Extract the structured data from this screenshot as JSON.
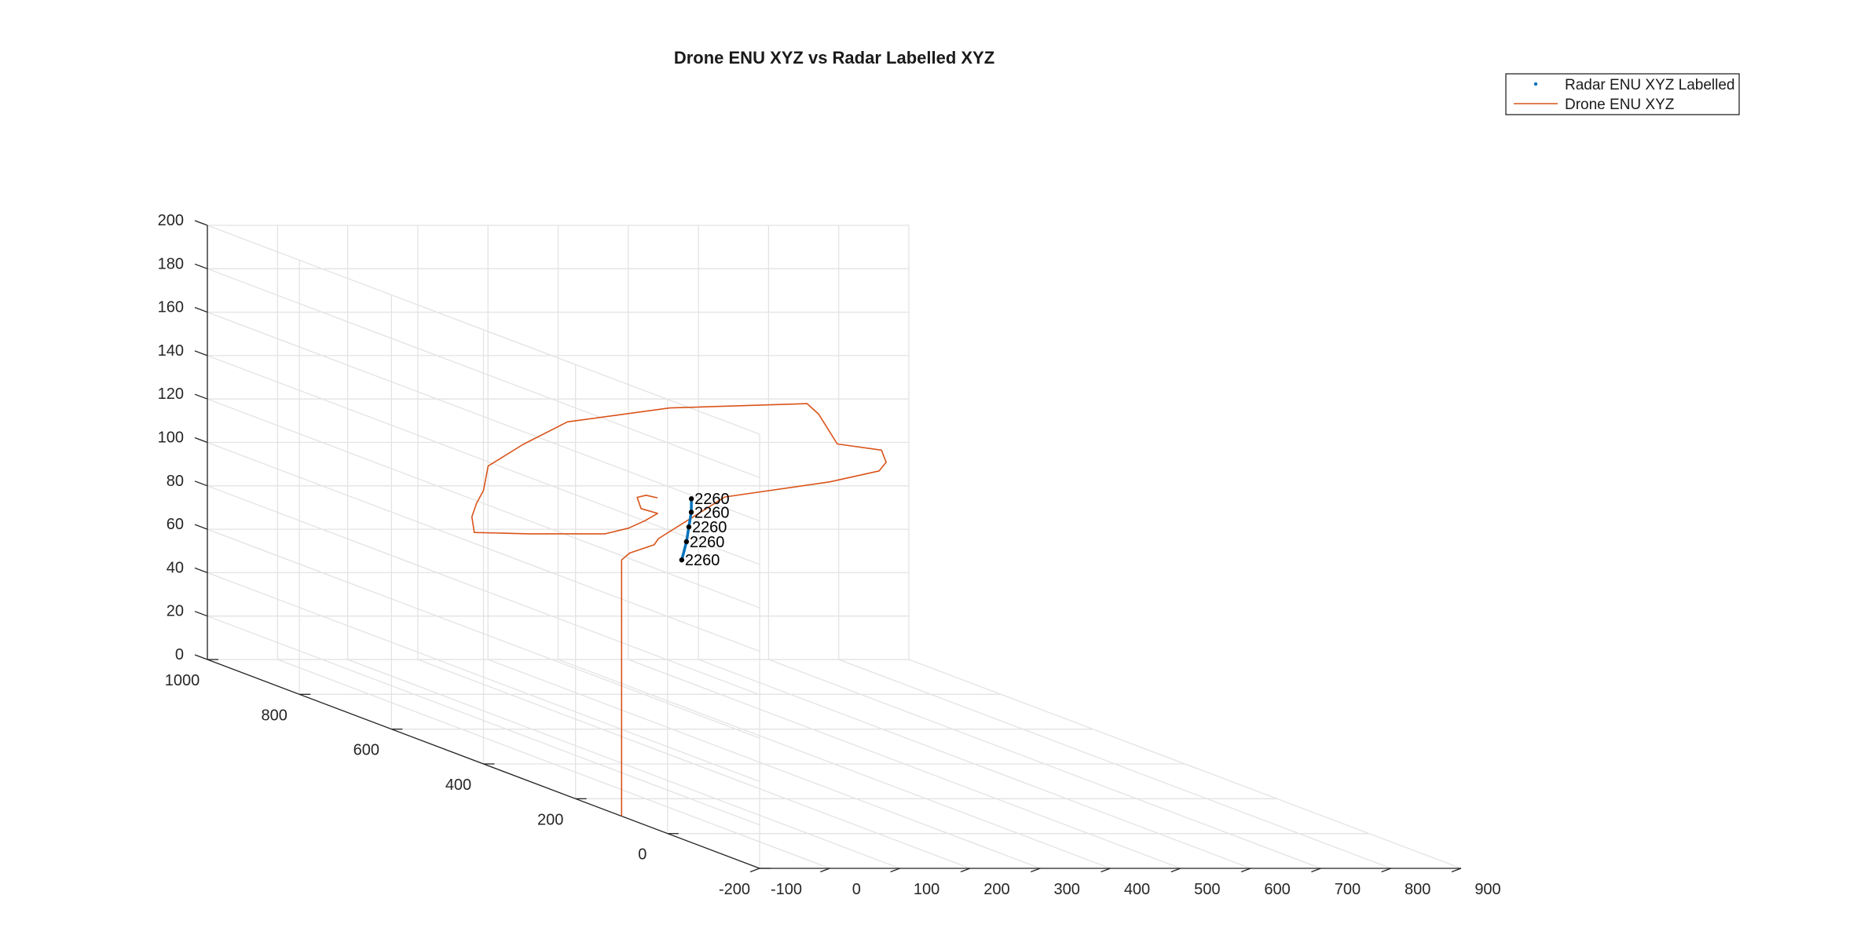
{
  "chart_data": {
    "type": "line",
    "title": "Drone ENU XYZ vs Radar Labelled XYZ",
    "x_ticks": [
      -100,
      0,
      100,
      200,
      300,
      400,
      500,
      600,
      700,
      800,
      900
    ],
    "y_ticks": [
      -200,
      0,
      200,
      400,
      600,
      800,
      1000
    ],
    "z_ticks": [
      0,
      20,
      40,
      60,
      80,
      100,
      120,
      140,
      160,
      180,
      200
    ],
    "xlim": [
      -100,
      900
    ],
    "ylim": [
      -200,
      1000
    ],
    "zlim": [
      0,
      200
    ],
    "grid": true,
    "legend_position": "top-right",
    "series": [
      {
        "name": "Radar ENU XYZ Labelled",
        "style": "points",
        "color": "#0072BD",
        "points": [
          {
            "x": 75,
            "y": 215,
            "z": 137,
            "label": "2260"
          },
          {
            "x": 65,
            "y": 200,
            "z": 132,
            "label": "2260"
          },
          {
            "x": 55,
            "y": 190,
            "z": 126,
            "label": "2260"
          },
          {
            "x": 45,
            "y": 180,
            "z": 120,
            "label": "2260"
          },
          {
            "x": 35,
            "y": 175,
            "z": 112,
            "label": "2260"
          }
        ]
      },
      {
        "name": "Drone ENU XYZ",
        "style": "line",
        "color": "#D95319",
        "points": [
          [
            -100,
            100,
            0
          ],
          [
            -100,
            100,
            118
          ],
          [
            -95,
            90,
            122
          ],
          [
            -70,
            75,
            127
          ],
          [
            -65,
            73,
            130
          ],
          [
            80,
            150,
            143
          ],
          [
            230,
            150,
            150
          ],
          [
            300,
            150,
            155
          ],
          [
            310,
            150,
            159
          ],
          [
            300,
            145,
            165
          ],
          [
            260,
            180,
            165
          ],
          [
            240,
            190,
            178
          ],
          [
            230,
            200,
            182
          ],
          [
            100,
            300,
            172
          ],
          [
            0,
            370,
            160
          ],
          [
            -50,
            390,
            148
          ],
          [
            -100,
            390,
            138
          ],
          [
            -100,
            400,
            126
          ],
          [
            -110,
            400,
            120
          ],
          [
            -110,
            410,
            113
          ],
          [
            -100,
            420,
            105
          ],
          [
            -20,
            425,
            104
          ],
          [
            90,
            425,
            104
          ],
          [
            120,
            420,
            107
          ],
          [
            130,
            400,
            112
          ],
          [
            135,
            380,
            117
          ],
          [
            105,
            370,
            120
          ],
          [
            60,
            310,
            130
          ],
          [
            40,
            260,
            135
          ],
          [
            30,
            220,
            137
          ]
        ]
      }
    ]
  }
}
